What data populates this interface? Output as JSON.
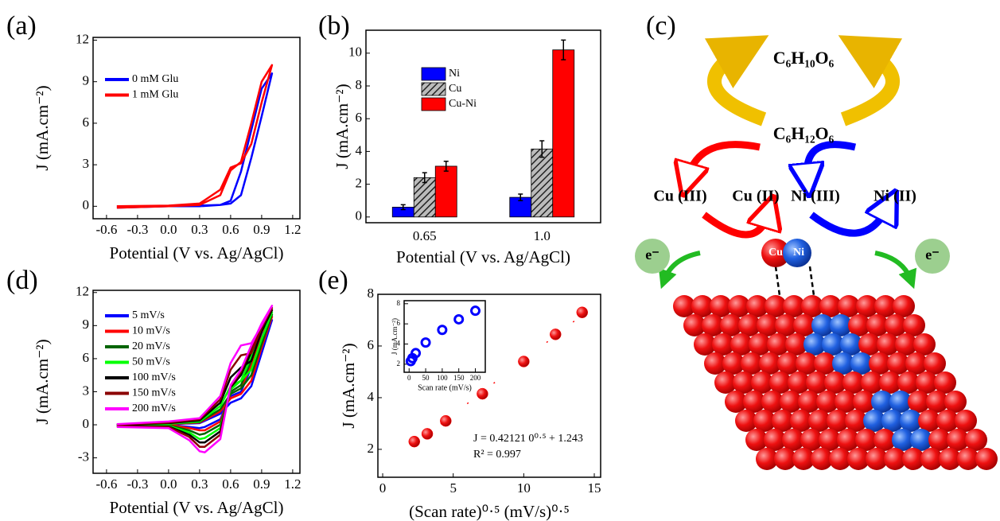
{
  "chart_data": [
    {
      "type": "line",
      "panel_label": "(a)",
      "xlabel": "Potential (V vs. Ag/AgCl)",
      "ylabel": "J (mA.cm⁻²)",
      "x": [
        -0.5,
        0,
        0.3,
        0.5,
        0.6,
        0.7,
        0.8,
        0.9,
        1.0,
        0.9,
        0.8,
        0.7,
        0.6,
        0.5,
        0.3,
        0,
        -0.5
      ],
      "series": [
        {
          "name": "0 mM Glu",
          "color": "#0000ff",
          "values": [
            0,
            0,
            0.05,
            0.1,
            0.2,
            0.8,
            3.5,
            6.5,
            9.6,
            8.5,
            5.5,
            2.5,
            0.4,
            0.1,
            0,
            0,
            -0.1
          ]
        },
        {
          "name": "1 mM Glu",
          "color": "#ff0000",
          "values": [
            0,
            0.05,
            0.2,
            1.2,
            2.8,
            3.1,
            4.5,
            7.5,
            10.2,
            9.0,
            6.0,
            3.2,
            2.6,
            0.8,
            0.1,
            0,
            -0.1
          ]
        }
      ],
      "xlim": [
        -0.73,
        1.27
      ],
      "xticks": [
        -0.6,
        -0.3,
        {
          "value": 0,
          "label": "0.0"
        },
        0.3,
        0.6,
        0.9,
        1.2
      ],
      "ylim": [
        -0.9,
        12.2
      ],
      "yticks": [
        0,
        3,
        6,
        9,
        12
      ],
      "legend": "upper left"
    },
    {
      "type": "bar",
      "panel_label": "(b)",
      "xlabel": "Potential (V vs. Ag/AgCl)",
      "ylabel": "J (mA.cm⁻²)",
      "categories": [
        "0.65",
        "1.0"
      ],
      "series": [
        {
          "name": "Ni",
          "color": "#0000ff",
          "values": [
            0.6,
            1.2
          ],
          "errors": [
            0.15,
            0.2
          ]
        },
        {
          "name": "Cu",
          "color": "#555555",
          "hatch": true,
          "values": [
            2.4,
            4.15
          ],
          "errors": [
            0.3,
            0.5
          ]
        },
        {
          "name": "Cu-Ni",
          "color": "#ff0000",
          "values": [
            3.1,
            10.2
          ],
          "errors": [
            0.3,
            0.6
          ]
        }
      ],
      "ylim": [
        -0.35,
        11.4
      ],
      "yticks": [
        0,
        2,
        4,
        6,
        8,
        10
      ],
      "legend": "upper left"
    },
    {
      "type": "line",
      "panel_label": "(d)",
      "xlabel": "Potential (V vs. Ag/AgCl)",
      "ylabel": "J (mA.cm⁻²)",
      "x": [
        -0.5,
        0,
        0.3,
        0.5,
        0.6,
        0.7,
        0.8,
        0.9,
        1.0,
        0.9,
        0.8,
        0.7,
        0.6,
        0.5,
        0.35,
        0.3,
        0.2,
        0,
        -0.5
      ],
      "series": [
        {
          "name": "5 mV/s",
          "color": "#0000ff",
          "values": [
            0,
            0.05,
            0.15,
            1.0,
            2.0,
            2.4,
            3.5,
            6.5,
            9.5,
            8.3,
            5.2,
            3.0,
            2.6,
            0.5,
            -0.2,
            -0.3,
            -0.2,
            0,
            -0.05
          ]
        },
        {
          "name": "10 mV/s",
          "color": "#ff0000",
          "values": [
            0,
            0.05,
            0.2,
            1.2,
            2.4,
            2.8,
            4.0,
            7.0,
            9.8,
            8.4,
            5.4,
            3.3,
            2.8,
            0.3,
            -0.5,
            -0.5,
            -0.3,
            0,
            -0.05
          ]
        },
        {
          "name": "20 mV/s",
          "color": "#006400",
          "values": [
            0,
            0.1,
            0.25,
            1.4,
            2.8,
            3.3,
            4.5,
            7.3,
            10.0,
            8.5,
            5.8,
            3.6,
            3.0,
            0,
            -0.8,
            -0.9,
            -0.5,
            -0.05,
            -0.1
          ]
        },
        {
          "name": "50 mV/s",
          "color": "#00ff00",
          "values": [
            0,
            0.1,
            0.3,
            1.7,
            3.5,
            4.0,
            5.0,
            7.8,
            10.2,
            8.6,
            6.2,
            4.0,
            3.2,
            -0.3,
            -1.2,
            -1.3,
            -0.7,
            -0.1,
            -0.1
          ]
        },
        {
          "name": "100 mV/s",
          "color": "#000000",
          "values": [
            0,
            0.15,
            0.4,
            2.0,
            4.3,
            5.2,
            5.8,
            8.5,
            10.4,
            8.8,
            6.6,
            4.5,
            3.4,
            -0.6,
            -1.6,
            -1.6,
            -0.9,
            -0.15,
            -0.1
          ]
        },
        {
          "name": "150 mV/s",
          "color": "#8b0000",
          "values": [
            0,
            0.2,
            0.5,
            2.3,
            5.0,
            6.3,
            6.5,
            8.8,
            10.6,
            9.0,
            7.0,
            4.8,
            3.5,
            -0.9,
            -2.0,
            -2.0,
            -1.1,
            -0.2,
            -0.15
          ]
        },
        {
          "name": "200 mV/s",
          "color": "#ff00ff",
          "values": [
            0.05,
            0.3,
            0.6,
            2.6,
            5.6,
            7.2,
            7.4,
            9.0,
            10.8,
            9.2,
            7.2,
            5.0,
            3.6,
            -1.3,
            -2.5,
            -2.4,
            -1.4,
            -0.3,
            -0.2
          ]
        }
      ],
      "xlim": [
        -0.73,
        1.27
      ],
      "xticks": [
        -0.6,
        -0.3,
        {
          "value": 0,
          "label": "0.0"
        },
        0.3,
        0.6,
        0.9,
        1.2
      ],
      "ylim": [
        -4.4,
        12.2
      ],
      "yticks": [
        -3,
        0,
        3,
        6,
        9,
        12
      ],
      "legend": "upper left"
    },
    {
      "type": "scatter",
      "panel_label": "(e)",
      "xlabel": "(Scan rate)⁰·⁵ (mV/s)⁰·⁵",
      "ylabel": "J (mA.cm⁻²)",
      "x": [
        2.24,
        3.16,
        4.47,
        7.07,
        10,
        12.25,
        14.14
      ],
      "color": "#ff0000",
      "marker_fill": true,
      "values": [
        2.3,
        2.6,
        3.1,
        4.15,
        5.4,
        6.45,
        7.3
      ],
      "fit": {
        "slope": 0.42121,
        "intercept": 1.243
      },
      "annotations": [
        "J = 0.42121 0⁰·⁵ + 1.243",
        "R² = 0.997"
      ],
      "xlim": [
        -0.34,
        15.45
      ],
      "xticks": [
        0,
        5,
        10,
        15
      ],
      "ylim": [
        0.92,
        8
      ],
      "yticks": [
        2,
        4,
        6,
        8
      ],
      "inset": {
        "type": "scatter",
        "xlabel": "Scan rate (mV/s)",
        "ylabel": "J (mA.cm⁻²)",
        "color": "#0000ff",
        "marker_fill": false,
        "x": [
          5,
          10,
          20,
          50,
          100,
          150,
          200
        ],
        "values": [
          2.3,
          2.6,
          3.1,
          4.15,
          5.4,
          6.45,
          7.3
        ],
        "xlim": [
          -15,
          230
        ],
        "xticks": [
          0,
          50,
          100,
          150,
          200
        ],
        "ylim": [
          1.2,
          8.3
        ],
        "yticks": [
          2,
          4,
          6,
          8
        ]
      }
    }
  ],
  "diagram": {
    "label": "(c)",
    "product": "C₆H₁₀O₆",
    "glucose": "C₆H₁₂O₆",
    "cu3": "Cu (III)",
    "cu2": "Cu (II)",
    "ni3": "Ni (III)",
    "ni2": "Ni (II)",
    "electron_left": "e⁻",
    "electron_right": "e⁻",
    "cu_atom": "Cu",
    "ni_atom": "Ni"
  }
}
